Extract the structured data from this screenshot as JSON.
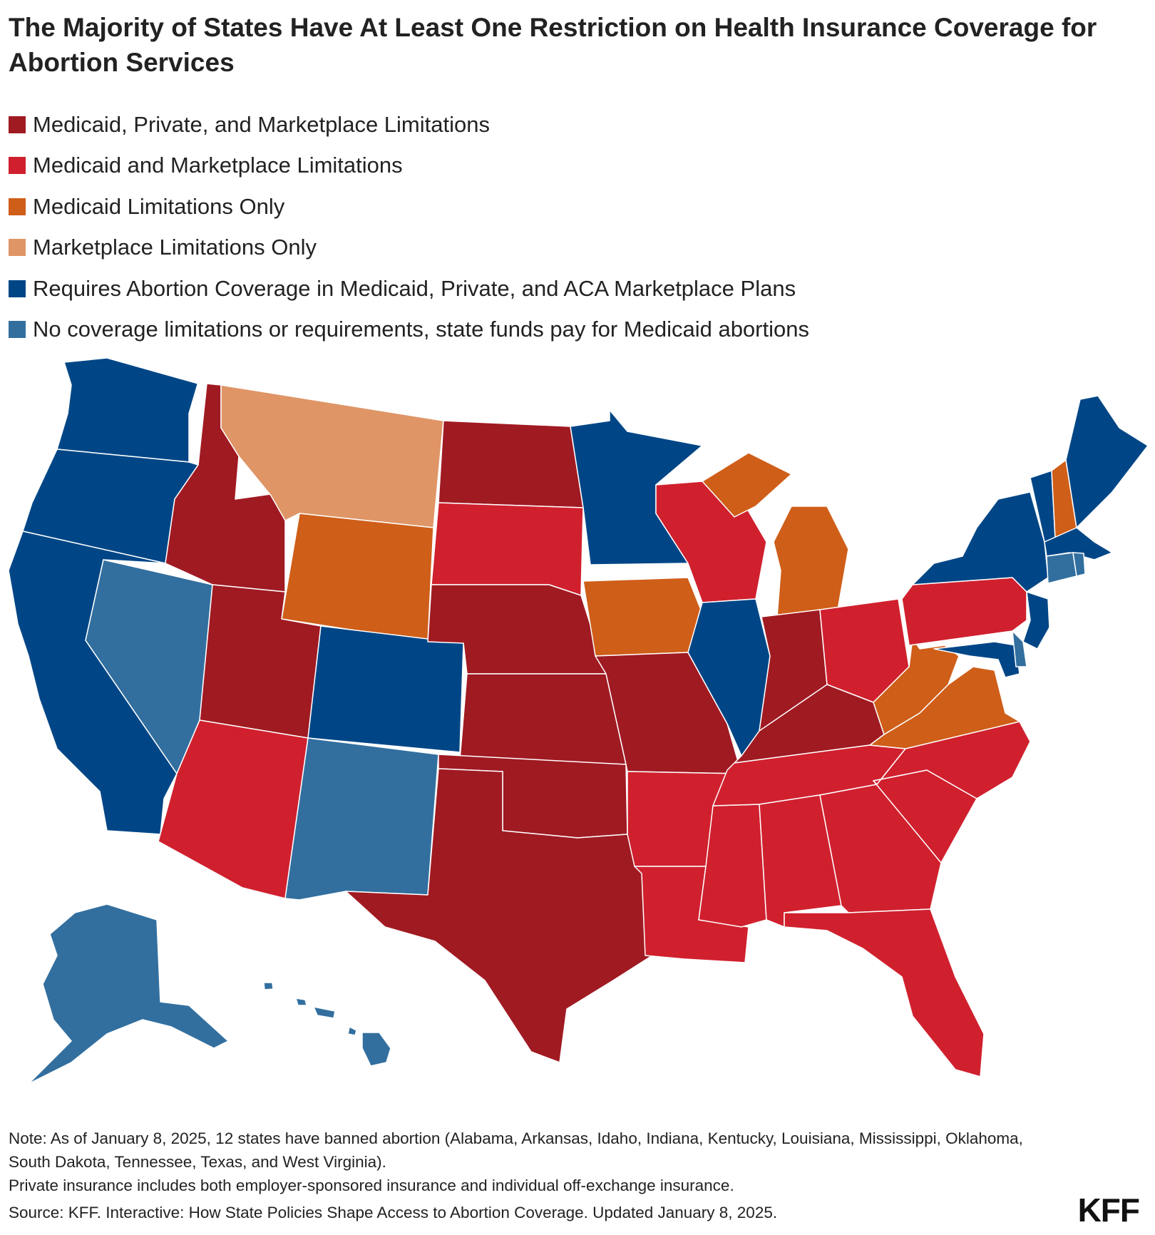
{
  "title": "The Majority of States Have At Least One Restriction on Health Insurance Coverage for Abortion Services",
  "legend": [
    {
      "label": "Medicaid, Private, and Marketplace Limitations",
      "color": "#a01a22"
    },
    {
      "label": "Medicaid and Marketplace Limitations",
      "color": "#d0202e"
    },
    {
      "label": "Medicaid Limitations Only",
      "color": "#cf5e19"
    },
    {
      "label": "Marketplace Limitations Only",
      "color": "#df9566"
    },
    {
      "label": "Requires Abortion Coverage in Medicaid, Private, and ACA Marketplace Plans",
      "color": "#004686"
    },
    {
      "label": "No coverage limitations or requirements, state funds pay for Medicaid abortions",
      "color": "#326f9f"
    }
  ],
  "states": {
    "WA": "Requires Abortion Coverage in Medicaid, Private, and ACA Marketplace Plans",
    "OR": "Requires Abortion Coverage in Medicaid, Private, and ACA Marketplace Plans",
    "CA": "Requires Abortion Coverage in Medicaid, Private, and ACA Marketplace Plans",
    "CO": "Requires Abortion Coverage in Medicaid, Private, and ACA Marketplace Plans",
    "MN": "Requires Abortion Coverage in Medicaid, Private, and ACA Marketplace Plans",
    "IL": "Requires Abortion Coverage in Medicaid, Private, and ACA Marketplace Plans",
    "NY": "Requires Abortion Coverage in Medicaid, Private, and ACA Marketplace Plans",
    "VT": "Requires Abortion Coverage in Medicaid, Private, and ACA Marketplace Plans",
    "ME": "Requires Abortion Coverage in Medicaid, Private, and ACA Marketplace Plans",
    "MA": "Requires Abortion Coverage in Medicaid, Private, and ACA Marketplace Plans",
    "NJ": "Requires Abortion Coverage in Medicaid, Private, and ACA Marketplace Plans",
    "MD": "Requires Abortion Coverage in Medicaid, Private, and ACA Marketplace Plans",
    "NV": "No coverage limitations or requirements, state funds pay for Medicaid abortions",
    "NM": "No coverage limitations or requirements, state funds pay for Medicaid abortions",
    "AK": "No coverage limitations or requirements, state funds pay for Medicaid abortions",
    "HI": "No coverage limitations or requirements, state funds pay for Medicaid abortions",
    "CT": "No coverage limitations or requirements, state funds pay for Medicaid abortions",
    "RI": "No coverage limitations or requirements, state funds pay for Medicaid abortions",
    "DE": "No coverage limitations or requirements, state funds pay for Medicaid abortions",
    "MT": "Marketplace Limitations Only",
    "WY": "Medicaid Limitations Only",
    "IA": "Medicaid Limitations Only",
    "MI": "Medicaid Limitations Only",
    "NH": "Medicaid Limitations Only",
    "VA": "Medicaid Limitations Only",
    "WV": "Medicaid Limitations Only",
    "ID": "Medicaid, Private, and Marketplace Limitations",
    "UT": "Medicaid, Private, and Marketplace Limitations",
    "ND": "Medicaid, Private, and Marketplace Limitations",
    "NE": "Medicaid, Private, and Marketplace Limitations",
    "KS": "Medicaid, Private, and Marketplace Limitations",
    "OK": "Medicaid, Private, and Marketplace Limitations",
    "TX": "Medicaid, Private, and Marketplace Limitations",
    "MO": "Medicaid, Private, and Marketplace Limitations",
    "IN": "Medicaid, Private, and Marketplace Limitations",
    "KY": "Medicaid, Private, and Marketplace Limitations",
    "SD": "Medicaid and Marketplace Limitations",
    "AZ": "Medicaid and Marketplace Limitations",
    "WI": "Medicaid and Marketplace Limitations",
    "AR": "Medicaid and Marketplace Limitations",
    "LA": "Medicaid and Marketplace Limitations",
    "MS": "Medicaid and Marketplace Limitations",
    "AL": "Medicaid and Marketplace Limitations",
    "GA": "Medicaid and Marketplace Limitations",
    "FL": "Medicaid and Marketplace Limitations",
    "SC": "Medicaid and Marketplace Limitations",
    "NC": "Medicaid and Marketplace Limitations",
    "TN": "Medicaid and Marketplace Limitations",
    "OH": "Medicaid and Marketplace Limitations",
    "PA": "Medicaid and Marketplace Limitations"
  },
  "notes": {
    "note_line1": "Note: As of January 8, 2025, 12 states have banned abortion (Alabama, Arkansas, Idaho, Indiana, Kentucky, Louisiana, Mississippi, Oklahoma, South Dakota, Tennessee, Texas, and West Virginia).",
    "note_line2": "Private insurance includes both employer-sponsored insurance and individual off-exchange insurance."
  },
  "source": "Source: KFF. Interactive: How State Policies Shape Access to Abortion Coverage. Updated January 8, 2025.",
  "logo": "KFF"
}
